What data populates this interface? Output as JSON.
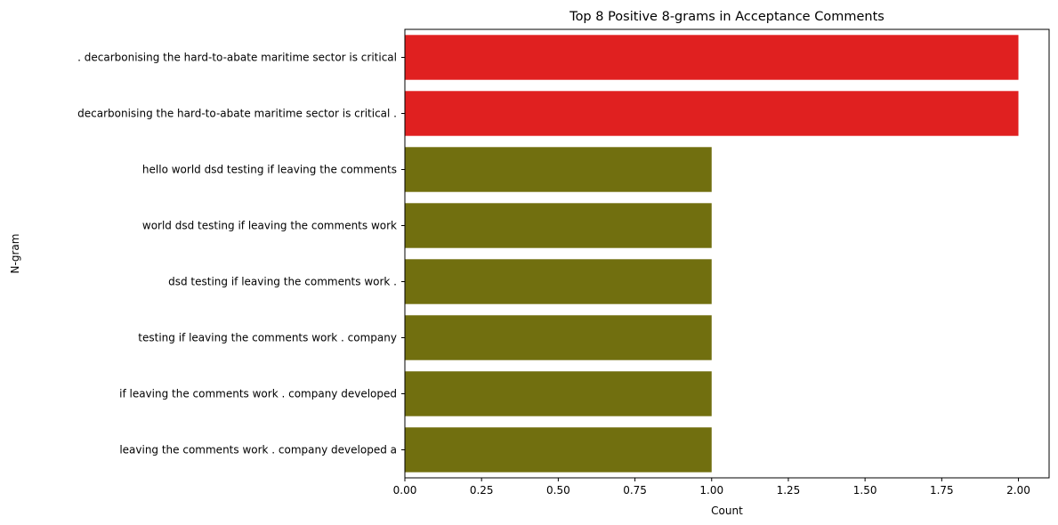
{
  "chart_data": {
    "type": "bar",
    "orientation": "horizontal",
    "title": "Top 8 Positive 8-grams in Acceptance Comments",
    "xlabel": "Count",
    "ylabel": "N-gram",
    "xlim": [
      0,
      2.1
    ],
    "xticks": [
      "0.00",
      "0.25",
      "0.50",
      "0.75",
      "1.00",
      "1.25",
      "1.50",
      "1.75",
      "2.00"
    ],
    "grid": false,
    "legend": "none",
    "categories": [
      ". decarbonising the hard-to-abate maritime sector is critical",
      "decarbonising the hard-to-abate maritime sector is critical .",
      "hello world dsd testing if leaving the comments",
      "world dsd testing if leaving the comments work",
      "dsd testing if leaving the comments work .",
      "testing if leaving the comments work . company",
      "if leaving the comments work . company developed",
      "leaving the comments work . company developed a"
    ],
    "values": [
      2,
      2,
      1,
      1,
      1,
      1,
      1,
      1
    ],
    "colors": [
      "#e02020",
      "#e02020",
      "#716f0f",
      "#716f0f",
      "#716f0f",
      "#716f0f",
      "#716f0f",
      "#716f0f"
    ]
  }
}
